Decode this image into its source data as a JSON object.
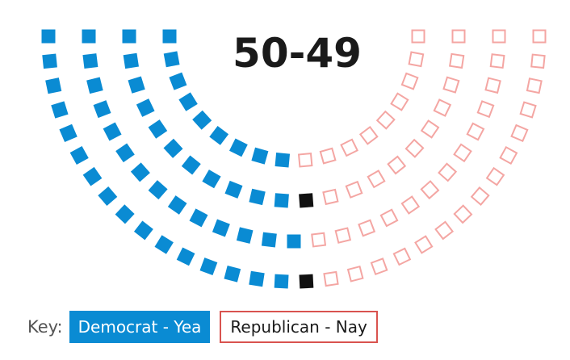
{
  "chart_data": {
    "type": "parliament",
    "title": "50-49",
    "series": [
      {
        "name": "Democrat - Yea",
        "count": 50,
        "color": "#0a8bd3",
        "style": "filled"
      },
      {
        "name": "Republican - Nay",
        "count": 49,
        "color": "#f4a6a3",
        "style": "outline"
      },
      {
        "name": "",
        "count": 2,
        "color": "#111111",
        "style": "filled"
      }
    ],
    "legend": {
      "prefix": "Key:",
      "items": [
        {
          "label": "Democrat - Yea",
          "color": "#0a8bd3"
        },
        {
          "label": "Republican - Nay",
          "color": "#d9534f"
        }
      ],
      "placement": "bottom-left"
    }
  }
}
